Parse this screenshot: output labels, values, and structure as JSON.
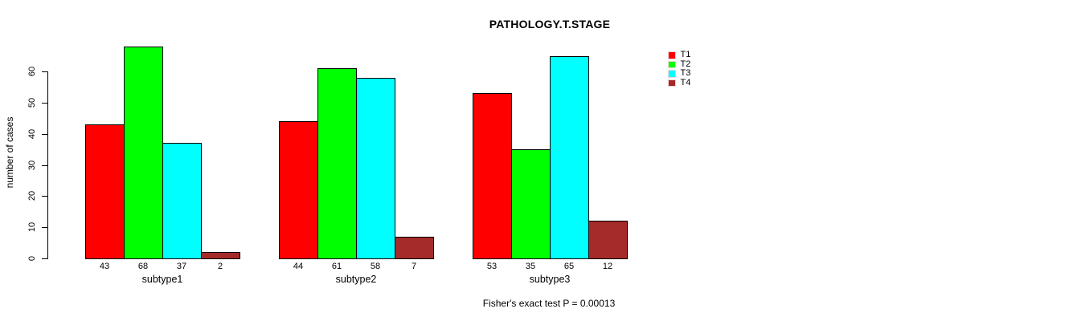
{
  "chart_data": {
    "type": "bar",
    "title": "PATHOLOGY.T.STAGE",
    "xlabel": "",
    "ylabel": "number of cases",
    "categories": [
      "subtype1",
      "subtype2",
      "subtype3"
    ],
    "series": [
      {
        "name": "T1",
        "color": "#ff0000",
        "values": [
          43,
          44,
          53
        ]
      },
      {
        "name": "T2",
        "color": "#00ff00",
        "values": [
          68,
          61,
          35
        ]
      },
      {
        "name": "T3",
        "color": "#00ffff",
        "values": [
          37,
          58,
          65
        ]
      },
      {
        "name": "T4",
        "color": "#a52a2a",
        "values": [
          2,
          7,
          12
        ]
      }
    ],
    "ylim": [
      0,
      68
    ],
    "yticks": [
      0,
      10,
      20,
      30,
      40,
      50,
      60
    ],
    "grid": false,
    "legend_position": "right",
    "bar_value_labels_shown": true,
    "annotation": "Fisher's exact test P = 0.00013",
    "axis_color": "#000000",
    "bar_border_color": "#000000",
    "background_color": "#ffffff"
  }
}
